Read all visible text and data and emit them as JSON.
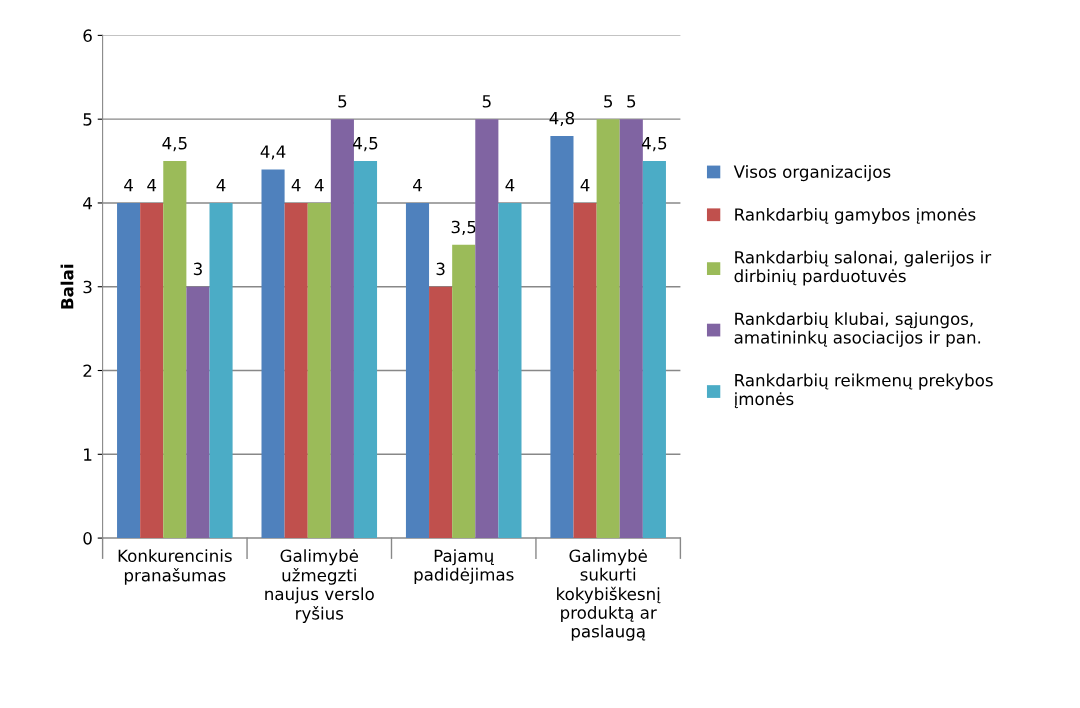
{
  "chart_data": {
    "type": "bar",
    "ylabel": "Balai",
    "categories": [
      "Konkurencinis\npranašumas",
      "Galimybė\nužmegzti\nnaujus verslo\nryšius",
      "Pajamų\npadidėjimas",
      "Galimybė\nsukurti\nkokybiškesnį\nproduktą ar\npaslaugą"
    ],
    "series": [
      {
        "name": "Visos organizacijos",
        "color": "#4f81bd",
        "values": [
          4,
          4.4,
          4,
          4.8
        ],
        "value_labels": [
          "4",
          "4,4",
          "4",
          "4,8"
        ]
      },
      {
        "name": "Rankdarbių gamybos įmonės",
        "color": "#c0504d",
        "values": [
          4,
          4,
          3,
          4
        ],
        "value_labels": [
          "4",
          "4",
          "3",
          "4"
        ]
      },
      {
        "name": "Rankdarbių salonai, galerijos ir\ndirbinių parduotuvės",
        "color": "#9bbb59",
        "values": [
          4.5,
          4,
          3.5,
          5
        ],
        "value_labels": [
          "4,5",
          "4",
          "3,5",
          "5"
        ]
      },
      {
        "name": "Rankdarbių klubai, sąjungos,\namatininkų asociacijos ir pan.",
        "color": "#8064a2",
        "values": [
          3,
          5,
          5,
          5
        ],
        "value_labels": [
          "3",
          "5",
          "5",
          "5"
        ]
      },
      {
        "name": "Rankdarbių reikmenų prekybos\nįmonės",
        "color": "#4bacc6",
        "values": [
          4,
          4.5,
          4,
          4.5
        ],
        "value_labels": [
          "4",
          "4,5",
          "4",
          "4,5"
        ]
      }
    ],
    "ylim": [
      0,
      6
    ],
    "yticks": [
      0,
      1,
      2,
      3,
      4,
      5,
      6
    ],
    "grid": "y",
    "legend": "right"
  }
}
